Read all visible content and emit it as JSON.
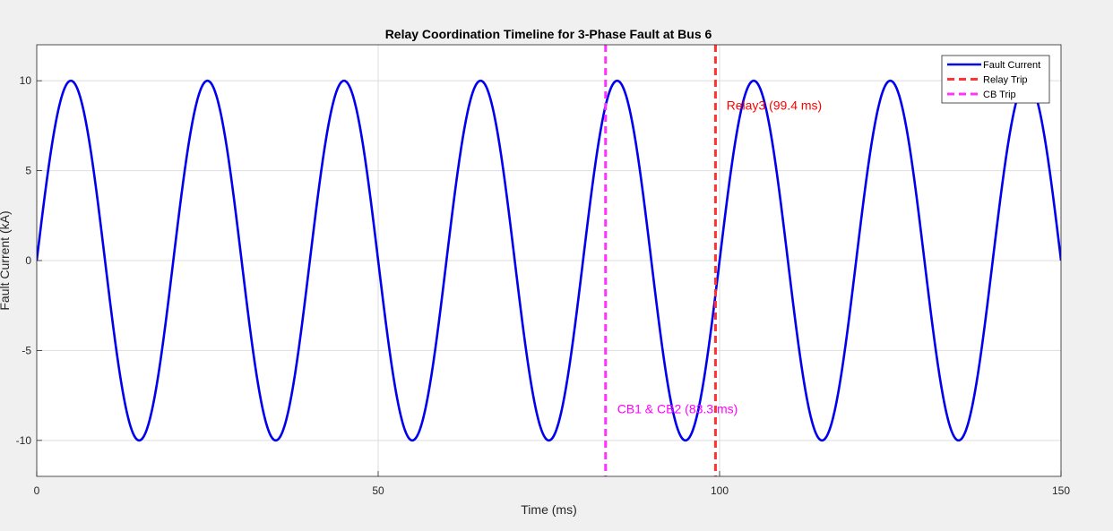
{
  "chart_data": {
    "type": "line",
    "title": "Relay Coordination Timeline for 3-Phase Fault at Bus 6",
    "xlabel": "Time (ms)",
    "ylabel": "Fault Current (kA)",
    "xlim": [
      0,
      150
    ],
    "ylim": [
      -12,
      12
    ],
    "xticks": [
      0,
      50,
      100,
      150
    ],
    "yticks": [
      -10,
      -5,
      0,
      5,
      10
    ],
    "grid": true,
    "legend_position": "top-right",
    "series": [
      {
        "name": "Fault Current",
        "color": "#0000ee",
        "style": "solid",
        "amplitude_kA": 10,
        "frequency_hz": 50,
        "x_start_ms": 0,
        "x_end_ms": 150
      },
      {
        "name": "Relay Trip",
        "color": "#ff3333",
        "style": "dashed",
        "x": [
          99.4
        ]
      },
      {
        "name": "CB Trip",
        "color": "#ff33ff",
        "style": "dashed",
        "x": [
          83.3
        ]
      }
    ],
    "annotations": [
      {
        "text": "Relay3 (99.4 ms)",
        "x": 101,
        "y": 8.4,
        "color": "#ff0000"
      },
      {
        "text": "CB1 & CB2 (83.3 ms)",
        "x": 85,
        "y": -8.5,
        "color": "#ff00ff"
      }
    ]
  }
}
